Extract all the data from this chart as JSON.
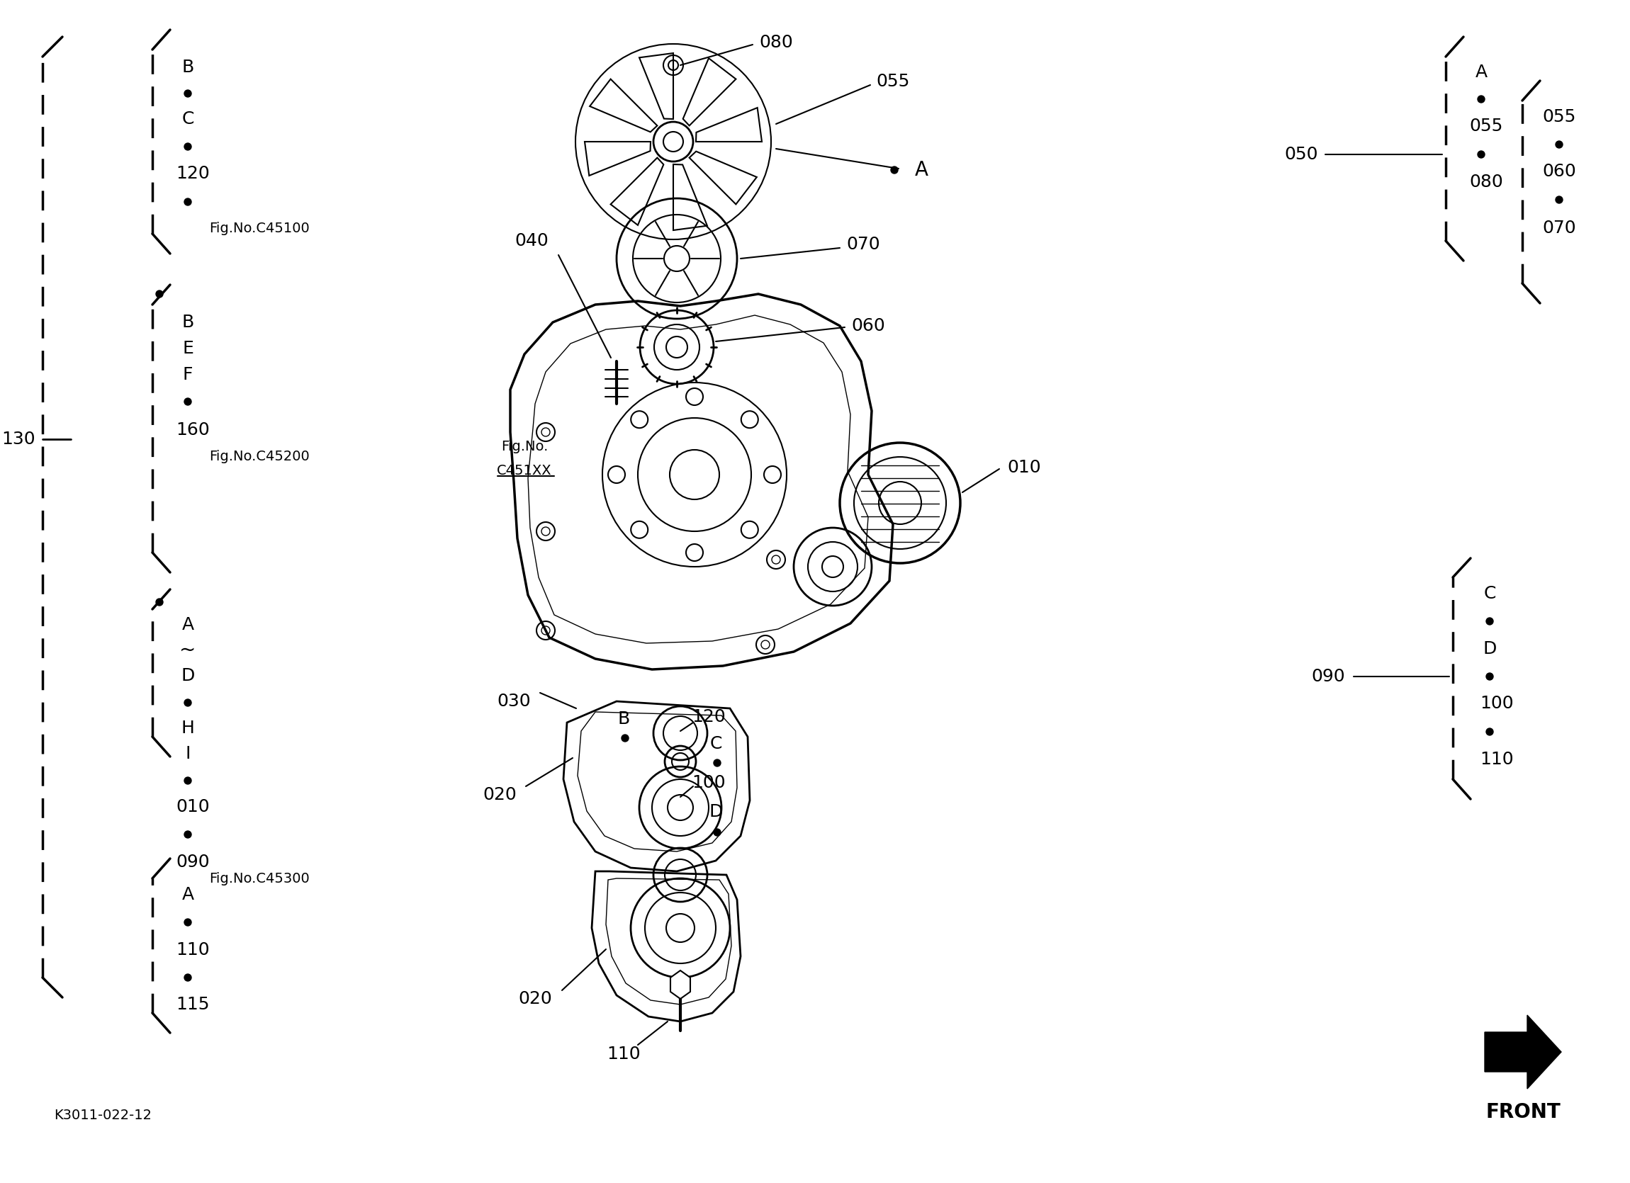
{
  "bg_color": "#ffffff",
  "line_color": "#000000",
  "bottom_label": "K3011-022-12",
  "front_label": "FRONT",
  "fig_no_c45100": "Fig.No.C45100",
  "fig_no_c45200": "Fig.No.C45200",
  "fig_no_c45300": "Fig.No.C45300",
  "fig_no_c451xx_line1": "Fig.No.",
  "fig_no_c451xx_line2": "C451XX",
  "font_size": 18,
  "font_size_small": 14
}
